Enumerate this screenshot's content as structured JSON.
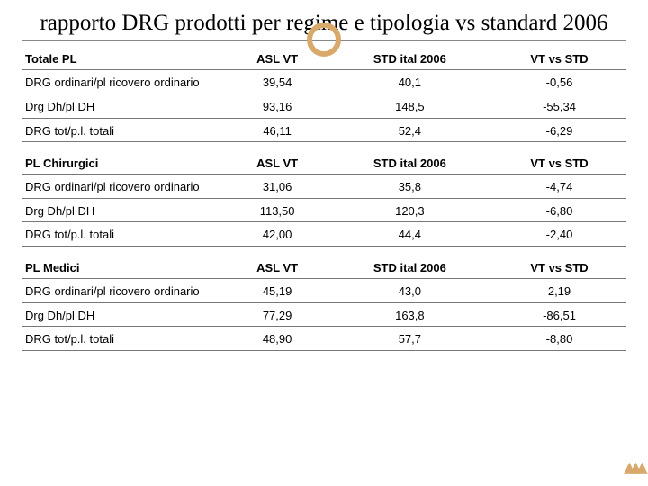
{
  "title": "rapporto DRG prodotti per regime e tipologia vs standard 2006",
  "columns": [
    "ASL VT",
    "STD ital 2006",
    "VT vs STD"
  ],
  "sections": [
    {
      "header": "Totale PL",
      "rows": [
        {
          "label": "DRG ordinari/pl ricovero ordinario",
          "v": [
            "39,54",
            "40,1",
            "-0,56"
          ]
        },
        {
          "label": "Drg Dh/pl DH",
          "v": [
            "93,16",
            "148,5",
            "-55,34"
          ]
        },
        {
          "label": "DRG tot/p.l. totali",
          "v": [
            "46,11",
            "52,4",
            "-6,29"
          ]
        }
      ]
    },
    {
      "header": "PL Chirurgici",
      "rows": [
        {
          "label": "DRG ordinari/pl ricovero ordinario",
          "v": [
            "31,06",
            "35,8",
            "-4,74"
          ]
        },
        {
          "label": "Drg Dh/pl DH",
          "v": [
            "113,50",
            "120,3",
            "-6,80"
          ]
        },
        {
          "label": "DRG tot/p.l. totali",
          "v": [
            "42,00",
            "44,4",
            "-2,40"
          ]
        }
      ]
    },
    {
      "header": "PL Medici",
      "rows": [
        {
          "label": "DRG ordinari/pl ricovero ordinario",
          "v": [
            "45,19",
            "43,0",
            "2,19"
          ]
        },
        {
          "label": "Drg Dh/pl DH",
          "v": [
            "77,29",
            "163,8",
            "-86,51"
          ]
        },
        {
          "label": "DRG tot/p.l. totali",
          "v": [
            "48,90",
            "57,7",
            "-8,80"
          ]
        }
      ]
    }
  ],
  "colors": {
    "accent": "#d8a96a",
    "rule": "#777777"
  }
}
